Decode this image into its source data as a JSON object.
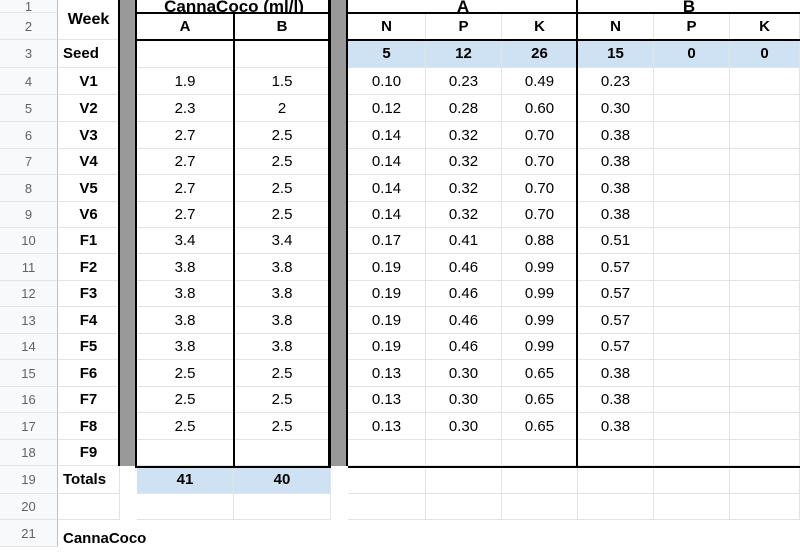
{
  "headers": {
    "week": "Week",
    "cannacoco": "CannaCoco (ml/l)",
    "group_a": "A",
    "group_b": "B",
    "sub": [
      "A",
      "B",
      "N",
      "P",
      "K",
      "N",
      "P",
      "K"
    ]
  },
  "row_numbers": [
    "1",
    "2",
    "3",
    "4",
    "5",
    "6",
    "7",
    "8",
    "9",
    "10",
    "11",
    "12",
    "13",
    "14",
    "15",
    "16",
    "17",
    "18",
    "19",
    "20",
    "21"
  ],
  "seed_row": {
    "week": "Seed",
    "values": [
      "",
      "",
      "5",
      "12",
      "26",
      "15",
      "0",
      "0"
    ]
  },
  "rows": [
    {
      "week": "V1",
      "values": [
        "1.9",
        "1.5",
        "0.10",
        "0.23",
        "0.49",
        "0.23",
        "",
        ""
      ]
    },
    {
      "week": "V2",
      "values": [
        "2.3",
        "2",
        "0.12",
        "0.28",
        "0.60",
        "0.30",
        "",
        ""
      ]
    },
    {
      "week": "V3",
      "values": [
        "2.7",
        "2.5",
        "0.14",
        "0.32",
        "0.70",
        "0.38",
        "",
        ""
      ]
    },
    {
      "week": "V4",
      "values": [
        "2.7",
        "2.5",
        "0.14",
        "0.32",
        "0.70",
        "0.38",
        "",
        ""
      ]
    },
    {
      "week": "V5",
      "values": [
        "2.7",
        "2.5",
        "0.14",
        "0.32",
        "0.70",
        "0.38",
        "",
        ""
      ]
    },
    {
      "week": "V6",
      "values": [
        "2.7",
        "2.5",
        "0.14",
        "0.32",
        "0.70",
        "0.38",
        "",
        ""
      ]
    },
    {
      "week": "F1",
      "values": [
        "3.4",
        "3.4",
        "0.17",
        "0.41",
        "0.88",
        "0.51",
        "",
        ""
      ]
    },
    {
      "week": "F2",
      "values": [
        "3.8",
        "3.8",
        "0.19",
        "0.46",
        "0.99",
        "0.57",
        "",
        ""
      ]
    },
    {
      "week": "F3",
      "values": [
        "3.8",
        "3.8",
        "0.19",
        "0.46",
        "0.99",
        "0.57",
        "",
        ""
      ]
    },
    {
      "week": "F4",
      "values": [
        "3.8",
        "3.8",
        "0.19",
        "0.46",
        "0.99",
        "0.57",
        "",
        ""
      ]
    },
    {
      "week": "F5",
      "values": [
        "3.8",
        "3.8",
        "0.19",
        "0.46",
        "0.99",
        "0.57",
        "",
        ""
      ]
    },
    {
      "week": "F6",
      "values": [
        "2.5",
        "2.5",
        "0.13",
        "0.30",
        "0.65",
        "0.38",
        "",
        ""
      ]
    },
    {
      "week": "F7",
      "values": [
        "2.5",
        "2.5",
        "0.13",
        "0.30",
        "0.65",
        "0.38",
        "",
        ""
      ]
    },
    {
      "week": "F8",
      "values": [
        "2.5",
        "2.5",
        "0.13",
        "0.30",
        "0.65",
        "0.38",
        "",
        ""
      ]
    },
    {
      "week": "F9",
      "values": [
        "",
        "",
        "",
        "",
        "",
        "",
        "",
        ""
      ]
    }
  ],
  "totals": {
    "label": "Totals",
    "values": [
      "41",
      "40"
    ]
  },
  "cutoff_text": "CannaCoco",
  "colors": {
    "highlight": "#cfe2f3",
    "separator": "#999999",
    "gridline": "#e2e3e3"
  }
}
